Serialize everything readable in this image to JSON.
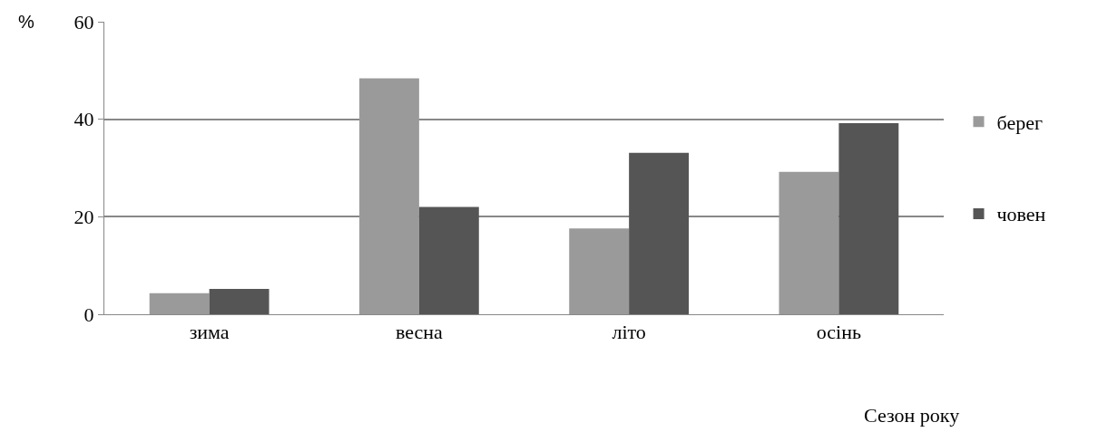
{
  "chart_data": {
    "type": "bar",
    "ylabel": "%",
    "xlabel": "Сезон року",
    "categories": [
      "зима",
      "весна",
      "літо",
      "осінь"
    ],
    "series": [
      {
        "name": "берег",
        "color": "#9a9a9a",
        "values": [
          4.3,
          48.4,
          17.6,
          29.2
        ]
      },
      {
        "name": "човен",
        "color": "#555555",
        "values": [
          5.2,
          22.0,
          33.1,
          39.2
        ]
      }
    ],
    "ylim": [
      0,
      60
    ],
    "yticks": [
      0,
      20,
      40,
      60
    ],
    "grid": "y",
    "legend": "right"
  }
}
